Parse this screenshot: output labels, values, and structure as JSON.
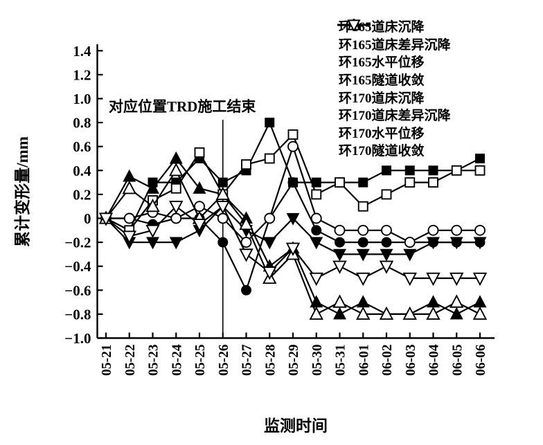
{
  "figure": {
    "background": "#ffffff",
    "ink": "#000000"
  },
  "chart_data": {
    "type": "line",
    "title": "",
    "xlabel": "监测时间",
    "ylabel": "累计变形量/mm",
    "ylim": [
      -1.0,
      1.4
    ],
    "grid": false,
    "legend_position": "top-right",
    "yticks": [
      {
        "label": "1.4",
        "value": 1.4
      },
      {
        "label": "1.2",
        "value": 1.2
      },
      {
        "label": "1.0",
        "value": 1.0
      },
      {
        "label": "0.8",
        "value": 0.8
      },
      {
        "label": "0.6",
        "value": 0.6
      },
      {
        "label": "0.4",
        "value": 0.4
      },
      {
        "label": "0.2",
        "value": 0.2
      },
      {
        "label": "0",
        "value": 0
      },
      {
        "label": "−0.2",
        "value": -0.2
      },
      {
        "label": "−0.4",
        "value": -0.4
      },
      {
        "label": "−0.6",
        "value": -0.6
      },
      {
        "label": "−0.8",
        "value": -0.8
      },
      {
        "label": "−1.0",
        "value": -1.0
      }
    ],
    "categories": [
      "05-21",
      "05-22",
      "05-23",
      "05-24",
      "05-25",
      "05-26",
      "05-27",
      "05-28",
      "05-29",
      "05-30",
      "05-31",
      "06-01",
      "06-02",
      "06-03",
      "06-04",
      "06-05",
      "06-06"
    ],
    "annotation": {
      "text": "对应位置TRD施工结束",
      "at_category": "05-26",
      "line_top_value": 0.8,
      "line_bottom_value": -1.0
    },
    "series": [
      {
        "name": "环165道床沉降",
        "marker": "square",
        "fill": "filled",
        "values": [
          0,
          -0.1,
          0.3,
          0.3,
          0.5,
          0.3,
          0.4,
          0.8,
          0.3,
          0.3,
          0.3,
          0.3,
          0.4,
          0.4,
          0.4,
          0.4,
          0.5
        ]
      },
      {
        "name": "环165道床差异沉降",
        "marker": "circle",
        "fill": "filled",
        "values": [
          0,
          0,
          -0.05,
          0,
          0,
          -0.2,
          -0.6,
          0,
          0.3,
          -0.1,
          -0.2,
          -0.2,
          -0.2,
          -0.2,
          -0.2,
          -0.2,
          -0.2
        ]
      },
      {
        "name": "环165水平位移",
        "marker": "triangle-up",
        "fill": "filled",
        "values": [
          0,
          0.35,
          0.25,
          0.5,
          0.25,
          0.2,
          0,
          -0.4,
          -0.25,
          -0.7,
          -0.8,
          -0.7,
          -0.8,
          -0.8,
          -0.7,
          -0.8,
          -0.7
        ]
      },
      {
        "name": "环165隧道收敛",
        "marker": "triangle-down",
        "fill": "filled",
        "values": [
          0,
          -0.2,
          -0.2,
          -0.2,
          -0.1,
          0.1,
          -0.1,
          -0.2,
          0,
          -0.2,
          -0.3,
          -0.3,
          -0.3,
          -0.3,
          -0.2,
          -0.2,
          -0.2
        ]
      },
      {
        "name": "环170道床沉降",
        "marker": "square",
        "fill": "open",
        "values": [
          0,
          -0.1,
          0.15,
          0.25,
          0.55,
          0.2,
          0.45,
          0.5,
          0.7,
          0.2,
          0.3,
          0.1,
          0.2,
          0.3,
          0.3,
          0.4,
          0.4
        ]
      },
      {
        "name": "环170道床差异沉降",
        "marker": "circle",
        "fill": "open",
        "values": [
          0,
          0,
          0.05,
          0,
          0.1,
          0,
          -0.2,
          0,
          0.6,
          0,
          -0.1,
          -0.1,
          -0.1,
          -0.2,
          -0.1,
          -0.1,
          -0.1
        ]
      },
      {
        "name": "环170水平位移",
        "marker": "triangle-up",
        "fill": "open",
        "values": [
          0,
          0.25,
          0.1,
          0.4,
          0,
          0.2,
          -0.05,
          -0.5,
          -0.3,
          -0.8,
          -0.7,
          -0.8,
          -0.8,
          -0.8,
          -0.8,
          -0.7,
          -0.8
        ]
      },
      {
        "name": "环170隧道收敛",
        "marker": "triangle-down",
        "fill": "open",
        "values": [
          0,
          -0.15,
          -0.1,
          0.1,
          -0.05,
          0.1,
          -0.3,
          -0.45,
          -0.25,
          -0.5,
          -0.4,
          -0.5,
          -0.4,
          -0.5,
          -0.5,
          -0.5,
          -0.5
        ]
      }
    ]
  }
}
